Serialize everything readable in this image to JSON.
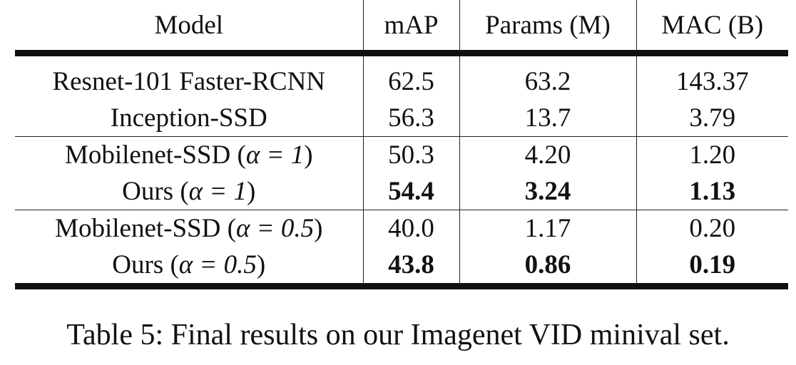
{
  "table": {
    "headers": [
      "Model",
      "mAP",
      "Params (M)",
      "MAC (B)"
    ],
    "rows": [
      {
        "model_pre": "Resnet-101 Faster-RCNN",
        "model_math": "",
        "model_post": "",
        "map": "62.5",
        "params": "63.2",
        "mac": "143.37",
        "bold": false
      },
      {
        "model_pre": "Inception-SSD",
        "model_math": "",
        "model_post": "",
        "map": "56.3",
        "params": "13.7",
        "mac": "3.79",
        "bold": false
      },
      {
        "model_pre": "Mobilenet-SSD (",
        "model_math": "α = 1",
        "model_post": ")",
        "map": "50.3",
        "params": "4.20",
        "mac": "1.20",
        "bold": false
      },
      {
        "model_pre": "Ours (",
        "model_math": "α = 1",
        "model_post": ")",
        "map": "54.4",
        "params": "3.24",
        "mac": "1.13",
        "bold": true
      },
      {
        "model_pre": "Mobilenet-SSD (",
        "model_math": "α = 0.5",
        "model_post": ")",
        "map": "40.0",
        "params": "1.17",
        "mac": "0.20",
        "bold": false
      },
      {
        "model_pre": "Ours (",
        "model_math": "α = 0.5",
        "model_post": ")",
        "map": "43.8",
        "params": "0.86",
        "mac": "0.19",
        "bold": true
      }
    ]
  },
  "caption": "Table 5: Final results on our Imagenet VID minival set."
}
